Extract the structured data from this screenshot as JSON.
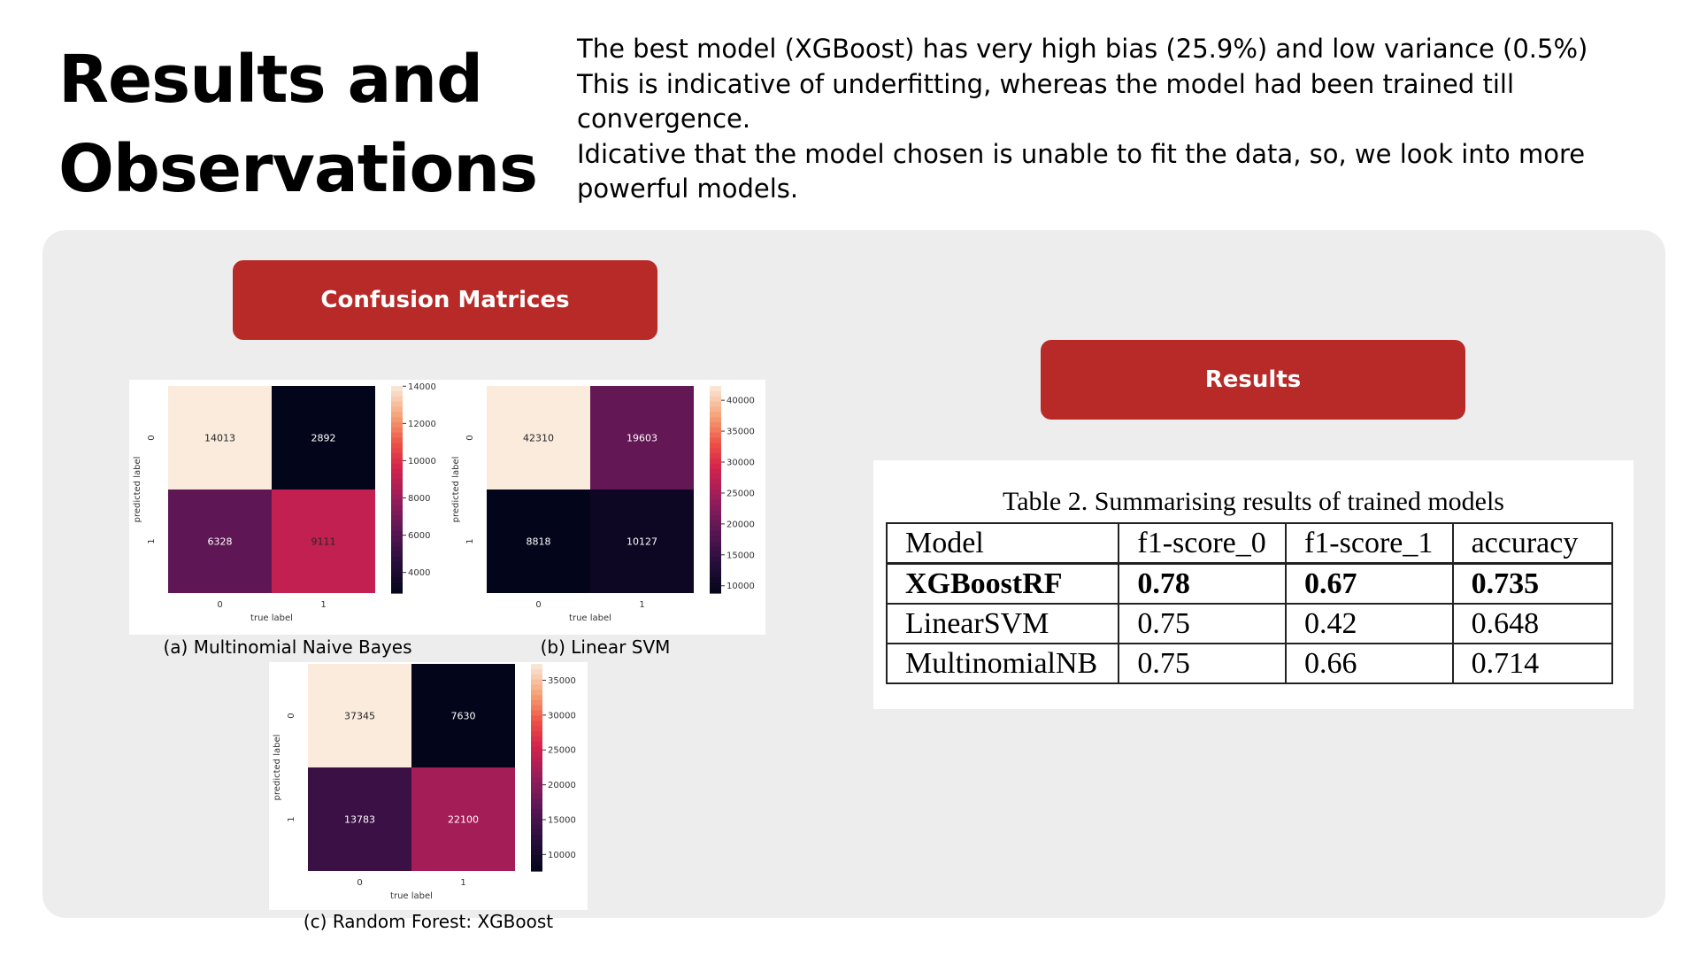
{
  "header": {
    "title_line1": "Results and",
    "title_line2": "Observations",
    "description": [
      "The best model (XGBoost) has very high bias (25.9%) and low variance (0.5%)",
      "This is indicative of underfitting, whereas the model had been trained till convergence.",
      "Idicative that the model chosen is unable to fit the data, so, we look into more powerful models."
    ]
  },
  "sections": {
    "confusion_label": "Confusion Matrices",
    "results_label": "Results"
  },
  "colors": {
    "accent": "#b82a27",
    "panel_bg": "#ededed"
  },
  "chart_data": [
    {
      "type": "heatmap",
      "caption": "(a) Multinomial Naive Bayes",
      "xlabel": "true label",
      "ylabel": "predicted label",
      "x_ticks": [
        "0",
        "1"
      ],
      "y_ticks": [
        "0",
        "1"
      ],
      "matrix": [
        [
          14013,
          2892
        ],
        [
          6328,
          9111
        ]
      ],
      "colorbar_ticks": [
        4000,
        6000,
        8000,
        10000,
        12000,
        14000
      ],
      "colorbar_range": [
        2892,
        14013
      ]
    },
    {
      "type": "heatmap",
      "caption": "(b) Linear SVM",
      "xlabel": "true label",
      "ylabel": "predicted label",
      "x_ticks": [
        "0",
        "1"
      ],
      "y_ticks": [
        "0",
        "1"
      ],
      "matrix": [
        [
          42310,
          19603
        ],
        [
          8818,
          10127
        ]
      ],
      "colorbar_ticks": [
        10000,
        15000,
        20000,
        25000,
        30000,
        35000,
        40000
      ],
      "colorbar_range": [
        8818,
        42310
      ]
    },
    {
      "type": "heatmap",
      "caption": "(c) Random Forest: XGBoost",
      "xlabel": "true label",
      "ylabel": "predicted label",
      "x_ticks": [
        "0",
        "1"
      ],
      "y_ticks": [
        "0",
        "1"
      ],
      "matrix": [
        [
          37345,
          7630
        ],
        [
          13783,
          22100
        ]
      ],
      "colorbar_ticks": [
        10000,
        15000,
        20000,
        25000,
        30000,
        35000
      ],
      "colorbar_range": [
        7630,
        37345
      ]
    },
    {
      "type": "table",
      "title": "Table 2. Summarising results of trained models",
      "columns": [
        "Model",
        "f1-score_0",
        "f1-score_1",
        "accuracy"
      ],
      "rows": [
        [
          "XGBoostRF",
          "0.78",
          "0.67",
          "0.735"
        ],
        [
          "LinearSVM",
          "0.75",
          "0.42",
          "0.648"
        ],
        [
          "MultinomialNB",
          "0.75",
          "0.66",
          "0.714"
        ]
      ]
    }
  ]
}
